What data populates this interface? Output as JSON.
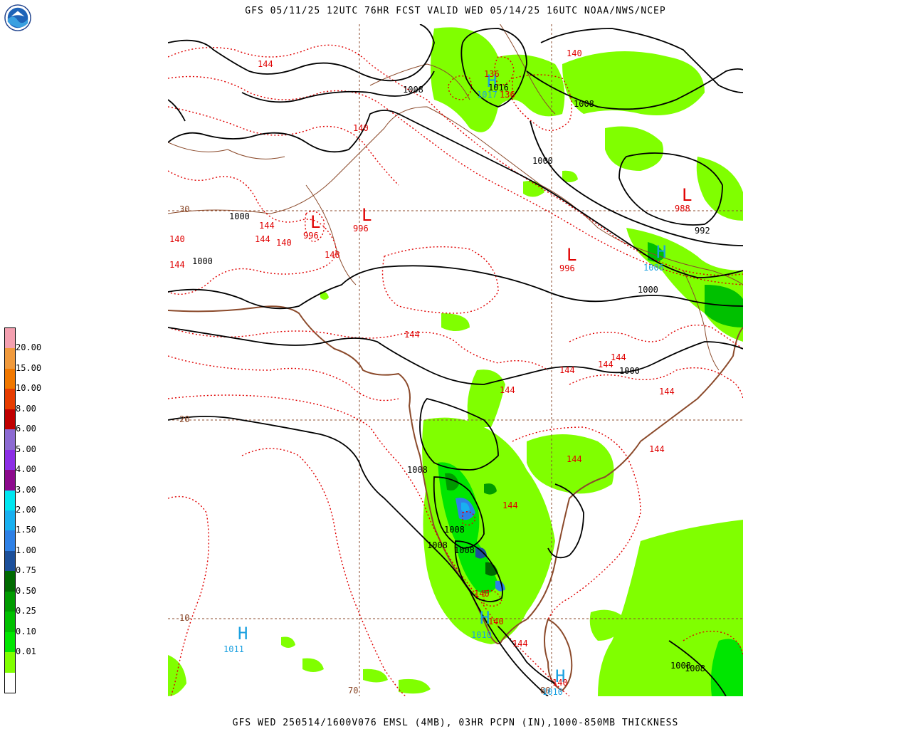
{
  "header": {
    "title": "GFS 05/11/25 12UTC 76HR FCST VALID WED 05/14/25 16UTC NOAA/NWS/NCEP"
  },
  "footer": {
    "title": "GFS WED 250514/1600V076 EMSL (4MB), 03HR PCPN (IN),1000-850MB THICKNESS"
  },
  "logo": {
    "icon": "noaa-logo-icon"
  },
  "legend": {
    "items": [
      {
        "label": "",
        "color": "#ffffff"
      },
      {
        "label": "0.01",
        "color": "#80ff00"
      },
      {
        "label": "0.10",
        "color": "#00e600"
      },
      {
        "label": "0.25",
        "color": "#00c000"
      },
      {
        "label": "0.50",
        "color": "#009a00"
      },
      {
        "label": "0.75",
        "color": "#006a00"
      },
      {
        "label": "1.00",
        "color": "#1c4f9a"
      },
      {
        "label": "1.50",
        "color": "#2e80e6"
      },
      {
        "label": "2.00",
        "color": "#18b0f0"
      },
      {
        "label": "3.00",
        "color": "#00e6f0"
      },
      {
        "label": "4.00",
        "color": "#8c0a8c"
      },
      {
        "label": "5.00",
        "color": "#8c2ee6"
      },
      {
        "label": "6.00",
        "color": "#8c6ad2"
      },
      {
        "label": "8.00",
        "color": "#c00000"
      },
      {
        "label": "10.00",
        "color": "#e63c00"
      },
      {
        "label": "15.00",
        "color": "#f07800"
      },
      {
        "label": "20.00",
        "color": "#f09a3c"
      },
      {
        "label": "",
        "color": "#f4a0b0"
      }
    ]
  },
  "map": {
    "lat_labels": [
      "30",
      "20",
      "10"
    ],
    "lon_labels": [
      "70",
      "80"
    ],
    "pressure_centers": [
      {
        "letter": "L",
        "value": "988",
        "kind": "low"
      },
      {
        "letter": "L",
        "value": "996",
        "kind": "low"
      },
      {
        "letter": "L",
        "value": "996",
        "kind": "low"
      },
      {
        "letter": "L",
        "value": "996",
        "kind": "low"
      },
      {
        "letter": "H",
        "value": "1011",
        "kind": "high"
      },
      {
        "letter": "H",
        "value": "1010",
        "kind": "high"
      },
      {
        "letter": "H",
        "value": "1010",
        "kind": "high"
      },
      {
        "letter": "H",
        "value": "1017",
        "kind": "high"
      },
      {
        "letter": "H",
        "value": "1006",
        "kind": "high"
      }
    ],
    "isobar_labels": [
      "1008",
      "1008",
      "1016",
      "1000",
      "992",
      "1000",
      "1000",
      "1000",
      "1000",
      "1008",
      "1008",
      "1008",
      "1008",
      "1008",
      "1008"
    ],
    "thickness_labels": [
      "144",
      "140",
      "140",
      "140",
      "144",
      "144",
      "140",
      "144",
      "148",
      "144",
      "144",
      "144",
      "144",
      "144",
      "144",
      "144",
      "144",
      "144",
      "140",
      "140",
      "144",
      "140",
      "136",
      "136"
    ],
    "colors": {
      "isobar": "#000000",
      "thickness": "#e00000",
      "coast": "#8b4a2b",
      "grid": "#8b4a2b",
      "high": "#1aa0e0",
      "low": "#e00000"
    }
  }
}
